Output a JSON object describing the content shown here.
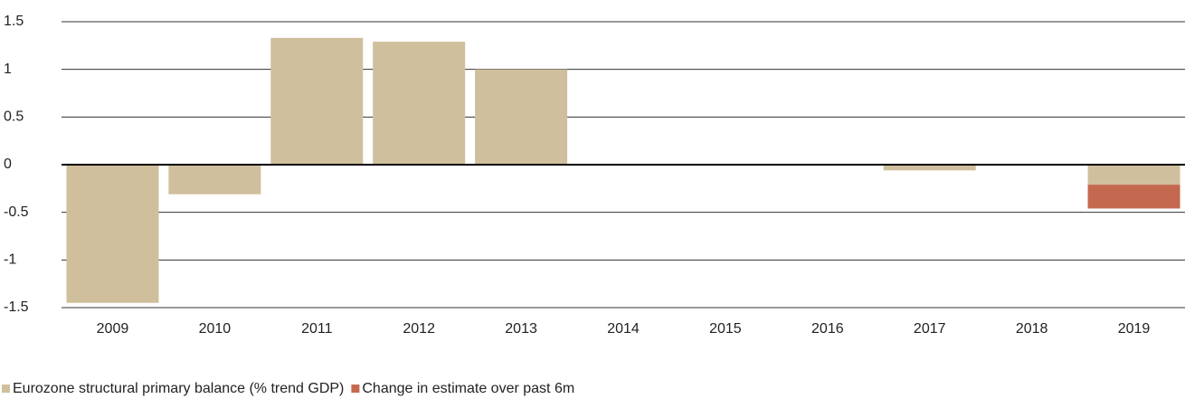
{
  "chart_data": {
    "type": "bar",
    "stacked": true,
    "categories": [
      "2009",
      "2010",
      "2011",
      "2012",
      "2013",
      "2014",
      "2015",
      "2016",
      "2017",
      "2018",
      "2019"
    ],
    "series": [
      {
        "name": "Eurozone structural primary balance (% trend GDP)",
        "color": "#d0bf9c",
        "values": [
          -1.45,
          -0.31,
          1.33,
          1.29,
          1.0,
          0,
          0,
          0,
          -0.06,
          0,
          -0.21
        ]
      },
      {
        "name": "Change in estimate over past 6m",
        "color": "#c4694f",
        "values": [
          0,
          0,
          0,
          0,
          0,
          0,
          0,
          0,
          0,
          0,
          -0.25
        ]
      }
    ],
    "ylim": [
      -1.5,
      1.5
    ],
    "yticks": [
      -1.5,
      -1,
      -0.5,
      0,
      0.5,
      1,
      1.5
    ],
    "grid": true,
    "legend": "bottom"
  }
}
